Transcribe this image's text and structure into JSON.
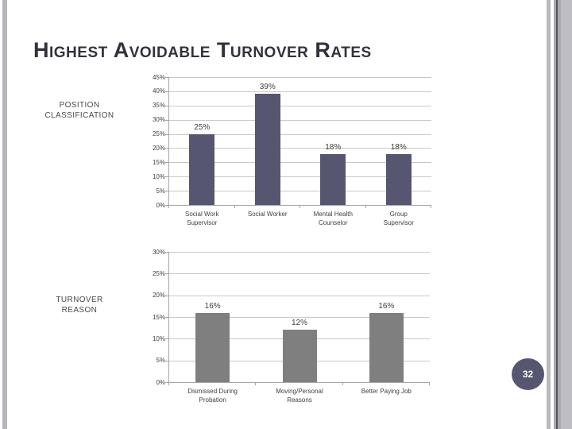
{
  "slide": {
    "title": "Highest Avoidable Turnover Rates",
    "page_number": "32"
  },
  "chart_data": [
    {
      "type": "bar",
      "section_label": "POSITION\nCLASSIFICATION",
      "categories": [
        "Social Work\nSupervisor",
        "Social Worker",
        "Mental Health\nCounselor",
        "Group\nSupervisor"
      ],
      "values": [
        25,
        39,
        18,
        18
      ],
      "data_labels": [
        "25%",
        "39%",
        "18%",
        "18%"
      ],
      "ylim": [
        0,
        45
      ],
      "ytick_step": 5,
      "ytick_suffix": "%",
      "grid": true,
      "legend": "none",
      "bar_color": "#565670"
    },
    {
      "type": "bar",
      "section_label": "TURNOVER\nREASON",
      "categories": [
        "Dismissed During\nProbation",
        "Moving/Personal\nReasons",
        "Better Paying Job"
      ],
      "values": [
        16,
        12,
        16
      ],
      "data_labels": [
        "16%",
        "12%",
        "16%"
      ],
      "ylim": [
        0,
        30
      ],
      "ytick_step": 5,
      "ytick_suffix": "%",
      "grid": true,
      "legend": "none",
      "bar_color": "#7f7f7f"
    }
  ],
  "theme": {
    "title_color": "#32323c",
    "chart_text_color": "#3f3f3f",
    "gridline_color": "#c9c9c9",
    "axis_color": "#a6a6a6",
    "badge_color": "#565670"
  }
}
